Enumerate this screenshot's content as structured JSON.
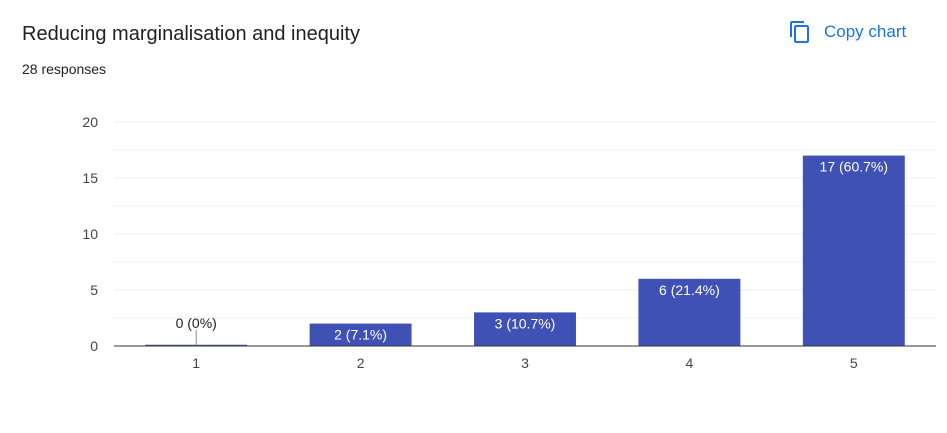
{
  "header": {
    "title": "Reducing marginalisation and inequity",
    "responses": "28 responses"
  },
  "toolbar": {
    "copy_label": "Copy chart",
    "copy_icon": "copy-icon"
  },
  "colors": {
    "bar": "#3f51b5",
    "accent": "#1a73e8",
    "grid": "#ebebeb",
    "axis": "#333333"
  },
  "chart_data": {
    "type": "bar",
    "categories": [
      "1",
      "2",
      "3",
      "4",
      "5"
    ],
    "values": [
      0,
      2,
      3,
      6,
      17
    ],
    "data_labels": [
      "0 (0%)",
      "2 (7.1%)",
      "3 (10.7%)",
      "6 (21.4%)",
      "17 (60.7%)"
    ],
    "y_ticks": [
      0,
      5,
      10,
      15,
      20
    ],
    "ylim": [
      0,
      20
    ],
    "grid": true,
    "legend": "none"
  }
}
